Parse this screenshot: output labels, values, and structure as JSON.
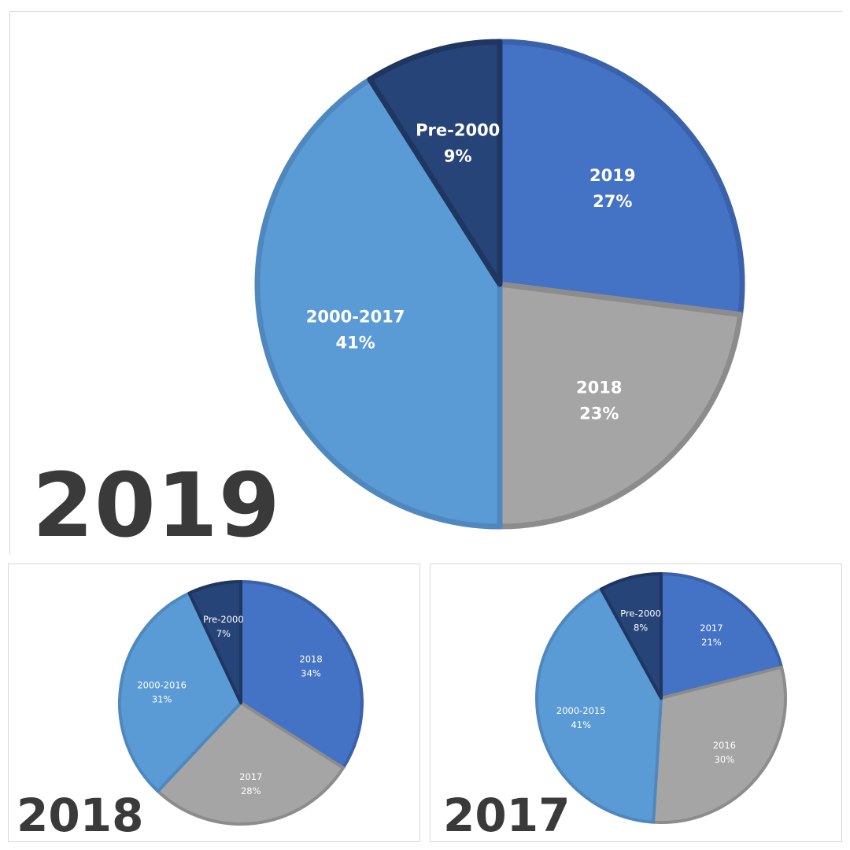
{
  "chart_data": [
    {
      "type": "pie",
      "title": "2019",
      "colors": [
        "#4472c4",
        "#a5a5a5",
        "#5b9bd5",
        "#264478"
      ],
      "slices": [
        {
          "label": "2019",
          "value": 27,
          "value_label": "27%"
        },
        {
          "label": "2018",
          "value": 23,
          "value_label": "23%"
        },
        {
          "label": "2000-2017",
          "value": 41,
          "value_label": "41%"
        },
        {
          "label": "Pre-2000",
          "value": 9,
          "value_label": "9%"
        }
      ]
    },
    {
      "type": "pie",
      "title": "2018",
      "colors": [
        "#4472c4",
        "#a5a5a5",
        "#5b9bd5",
        "#264478"
      ],
      "slices": [
        {
          "label": "2018",
          "value": 34,
          "value_label": "34%"
        },
        {
          "label": "2017",
          "value": 28,
          "value_label": "28%"
        },
        {
          "label": "2000-2016",
          "value": 31,
          "value_label": "31%"
        },
        {
          "label": "Pre-2000",
          "value": 7,
          "value_label": "7%"
        }
      ]
    },
    {
      "type": "pie",
      "title": "2017",
      "colors": [
        "#4472c4",
        "#a5a5a5",
        "#5b9bd5",
        "#264478"
      ],
      "slices": [
        {
          "label": "2017",
          "value": 21,
          "value_label": "21%"
        },
        {
          "label": "2016",
          "value": 30,
          "value_label": "30%"
        },
        {
          "label": "2000-2015",
          "value": 41,
          "value_label": "41%"
        },
        {
          "label": "Pre-2000",
          "value": 8,
          "value_label": "8%"
        }
      ]
    }
  ]
}
